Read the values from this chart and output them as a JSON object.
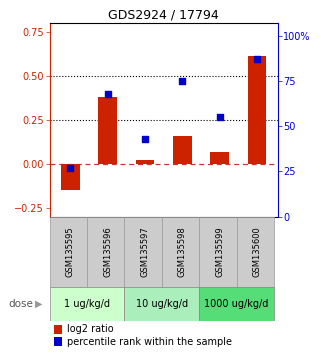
{
  "title": "GDS2924 / 17794",
  "samples": [
    "GSM135595",
    "GSM135596",
    "GSM135597",
    "GSM135598",
    "GSM135599",
    "GSM135600"
  ],
  "log2_ratio": [
    -0.15,
    0.38,
    0.02,
    0.16,
    0.065,
    0.61
  ],
  "percentile_rank": [
    27,
    68,
    43,
    75,
    55,
    87
  ],
  "bar_color": "#cc2200",
  "dot_color": "#0000cc",
  "ylim_left": [
    -0.3,
    0.8
  ],
  "ylim_right": [
    0,
    107
  ],
  "yticks_left": [
    -0.25,
    0.0,
    0.25,
    0.5,
    0.75
  ],
  "yticks_right": [
    0,
    25,
    50,
    75,
    100
  ],
  "yticklabels_right": [
    "0",
    "25",
    "50",
    "75",
    "100%"
  ],
  "hline_y": [
    0.25,
    0.5
  ],
  "dose_groups": [
    {
      "label": "1 ug/kg/d",
      "samples": [
        0,
        1
      ],
      "color": "#ccffcc"
    },
    {
      "label": "10 ug/kg/d",
      "samples": [
        2,
        3
      ],
      "color": "#aaeebb"
    },
    {
      "label": "1000 ug/kg/d",
      "samples": [
        4,
        5
      ],
      "color": "#55dd77"
    }
  ],
  "dose_label": "dose",
  "legend_bar_label": "log2 ratio",
  "legend_dot_label": "percentile rank within the sample",
  "left_axis_color": "#cc2200",
  "right_axis_color": "#0000cc",
  "bg_color": "#ffffff",
  "gsm_bg": "#cccccc",
  "zero_line_color": "#cc3333",
  "title_font": "DejaVu Sans",
  "tick_fontsize": 7,
  "bar_width": 0.5
}
